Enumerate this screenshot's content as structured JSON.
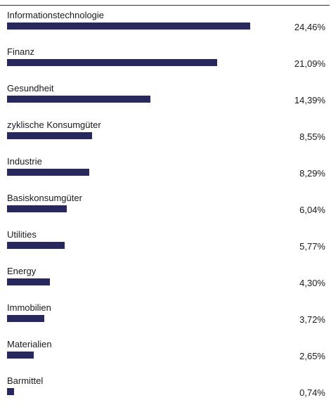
{
  "colors": {
    "bar": "#26285e",
    "rule": "#333333"
  },
  "chart_data": {
    "type": "bar",
    "orientation": "horizontal",
    "categories": [
      "Informationstechnologie",
      "Finanz",
      "Gesundheit",
      "zyklische Konsumgüter",
      "Industrie",
      "Basiskonsumgüter",
      "Utilities",
      "Energy",
      "Immobilien",
      "Materialien",
      "Barmittel"
    ],
    "values": [
      24.46,
      21.09,
      14.39,
      8.55,
      8.29,
      6.04,
      5.77,
      4.3,
      3.72,
      2.65,
      0.74
    ],
    "value_labels": [
      "24,46%",
      "21,09%",
      "14,39%",
      "8,55%",
      "8,29%",
      "6,04%",
      "5,77%",
      "4,30%",
      "3,72%",
      "2,65%",
      "0,74%"
    ],
    "unit": "%",
    "xlim": [
      0,
      32.5
    ],
    "grid": false,
    "legend": "none"
  }
}
